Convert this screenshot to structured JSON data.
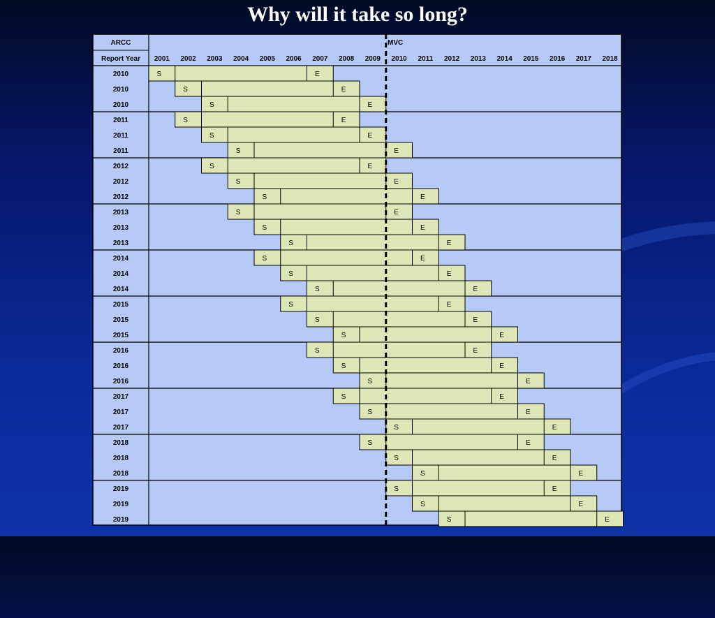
{
  "slide": {
    "title": "Why will it take so long?"
  },
  "table": {
    "header_top_left": "ARCC",
    "header_bottom_left": "Report Year",
    "marker_label": "MVC",
    "marker_after_year": 2009
  },
  "chart_data": {
    "type": "table",
    "years": [
      2001,
      2002,
      2003,
      2004,
      2005,
      2006,
      2007,
      2008,
      2009,
      2010,
      2011,
      2012,
      2013,
      2014,
      2015,
      2016,
      2017,
      2018
    ],
    "start_marker": "S",
    "end_marker": "E",
    "rows": [
      {
        "report_year": "2010",
        "start": 2001,
        "end": 2007
      },
      {
        "report_year": "2010",
        "start": 2002,
        "end": 2008
      },
      {
        "report_year": "2010",
        "start": 2003,
        "end": 2009
      },
      {
        "report_year": "2011",
        "start": 2002,
        "end": 2008
      },
      {
        "report_year": "2011",
        "start": 2003,
        "end": 2009
      },
      {
        "report_year": "2011",
        "start": 2004,
        "end": 2010
      },
      {
        "report_year": "2012",
        "start": 2003,
        "end": 2009
      },
      {
        "report_year": "2012",
        "start": 2004,
        "end": 2010
      },
      {
        "report_year": "2012",
        "start": 2005,
        "end": 2011
      },
      {
        "report_year": "2013",
        "start": 2004,
        "end": 2010
      },
      {
        "report_year": "2013",
        "start": 2005,
        "end": 2011
      },
      {
        "report_year": "2013",
        "start": 2006,
        "end": 2012
      },
      {
        "report_year": "2014",
        "start": 2005,
        "end": 2011
      },
      {
        "report_year": "2014",
        "start": 2006,
        "end": 2012
      },
      {
        "report_year": "2014",
        "start": 2007,
        "end": 2013
      },
      {
        "report_year": "2015",
        "start": 2006,
        "end": 2012
      },
      {
        "report_year": "2015",
        "start": 2007,
        "end": 2013
      },
      {
        "report_year": "2015",
        "start": 2008,
        "end": 2014
      },
      {
        "report_year": "2016",
        "start": 2007,
        "end": 2013
      },
      {
        "report_year": "2016",
        "start": 2008,
        "end": 2014
      },
      {
        "report_year": "2016",
        "start": 2009,
        "end": 2015
      },
      {
        "report_year": "2017",
        "start": 2008,
        "end": 2014
      },
      {
        "report_year": "2017",
        "start": 2009,
        "end": 2015
      },
      {
        "report_year": "2017",
        "start": 2010,
        "end": 2016
      },
      {
        "report_year": "2018",
        "start": 2009,
        "end": 2015
      },
      {
        "report_year": "2018",
        "start": 2010,
        "end": 2016
      },
      {
        "report_year": "2018",
        "start": 2011,
        "end": 2017
      },
      {
        "report_year": "2019",
        "start": 2010,
        "end": 2016
      },
      {
        "report_year": "2019",
        "start": 2011,
        "end": 2017
      },
      {
        "report_year": "2019",
        "start": 2012,
        "end": 2018
      }
    ]
  }
}
